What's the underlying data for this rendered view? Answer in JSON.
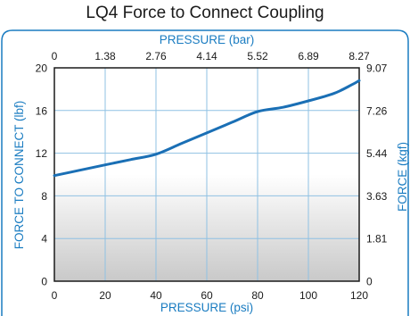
{
  "chart_data": {
    "type": "line",
    "title": "LQ4 Force to Connect Coupling",
    "xlabel": "PRESSURE (psi)",
    "ylabel": "FORCE TO CONNECT (lbf)",
    "x2label": "PRESSURE (bar)",
    "y2label": "FORCE (kgf)",
    "xlim": [
      0,
      120
    ],
    "ylim": [
      0,
      20
    ],
    "x_ticks": [
      0,
      20,
      40,
      60,
      80,
      100,
      120
    ],
    "y_ticks": [
      0,
      4,
      8,
      12,
      16,
      20
    ],
    "x2_ticks": [
      "0",
      "1.38",
      "2.76",
      "4.14",
      "5.52",
      "6.89",
      "8.27"
    ],
    "y2_ticks": [
      "0",
      "1.81",
      "3.63",
      "5.44",
      "7.26",
      "9.07"
    ],
    "grid": true,
    "series": [
      {
        "x": [
          0,
          10,
          20,
          30,
          40,
          50,
          60,
          70,
          80,
          90,
          100,
          110,
          117,
          120
        ],
        "y": [
          9.9,
          10.4,
          10.9,
          11.4,
          11.9,
          12.9,
          13.9,
          14.9,
          15.9,
          16.3,
          16.9,
          17.6,
          18.4,
          18.8
        ]
      }
    ]
  },
  "colors": {
    "accent": "#1a7cc1",
    "line": "#1a6fb5",
    "grid": "#8fc1e3"
  }
}
